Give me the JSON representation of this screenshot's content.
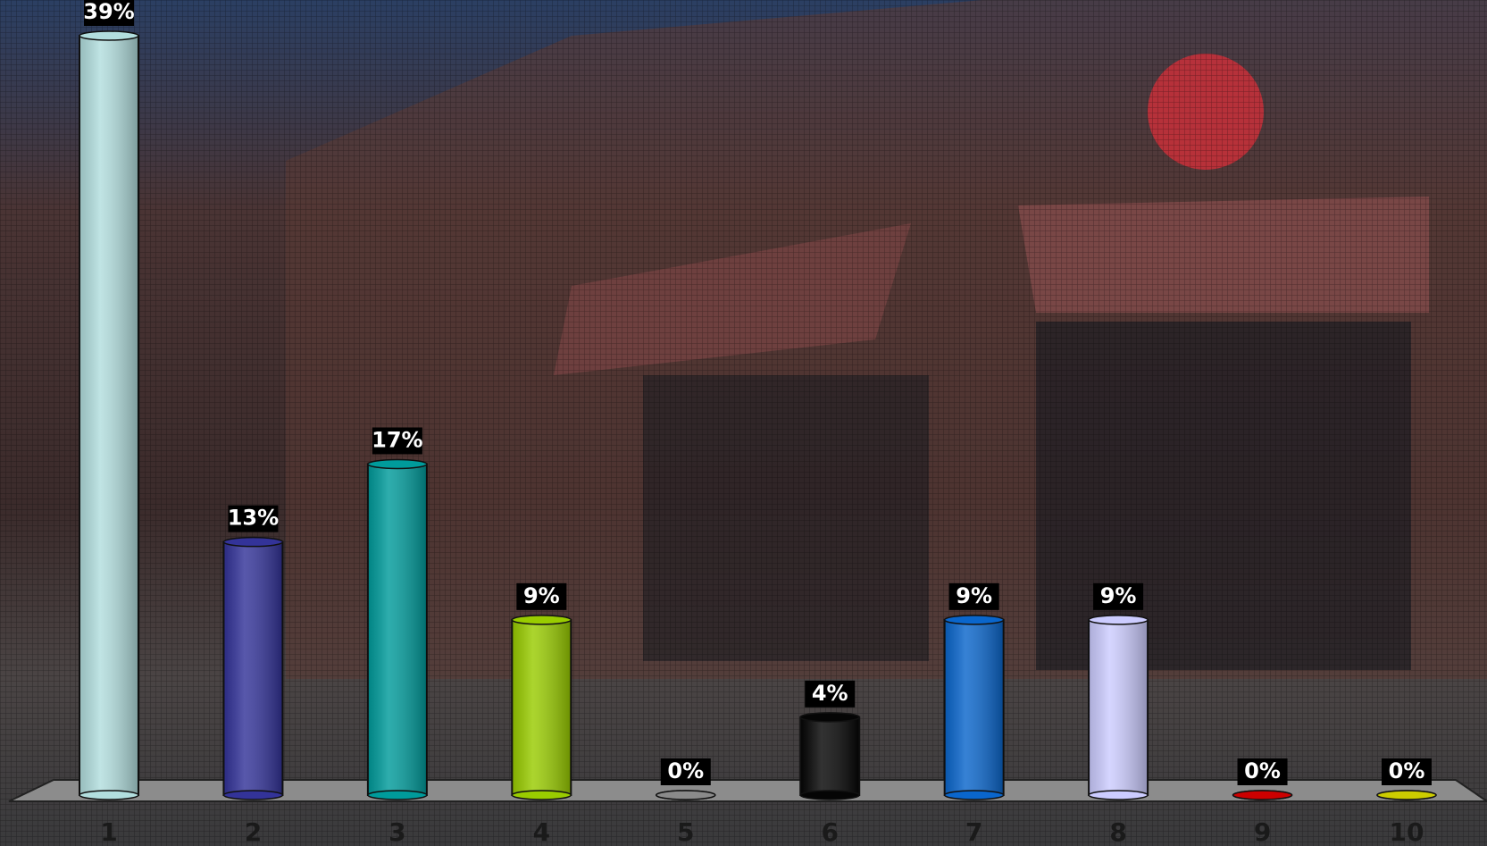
{
  "chart_data": {
    "type": "bar",
    "categories": [
      "1",
      "2",
      "3",
      "4",
      "5",
      "6",
      "7",
      "8",
      "9",
      "10"
    ],
    "values": [
      39,
      13,
      17,
      9,
      0,
      4,
      9,
      9,
      0,
      0
    ],
    "value_labels": [
      "39%",
      "13%",
      "17%",
      "9%",
      "0%",
      "4%",
      "9%",
      "9%",
      "0%",
      "0%"
    ],
    "colors": [
      "#b2dede",
      "#333399",
      "#009b9b",
      "#99cc00",
      "#8a8a8a",
      "#050505",
      "#0a66cc",
      "#ccccff",
      "#cc0000",
      "#cccc00"
    ]
  }
}
